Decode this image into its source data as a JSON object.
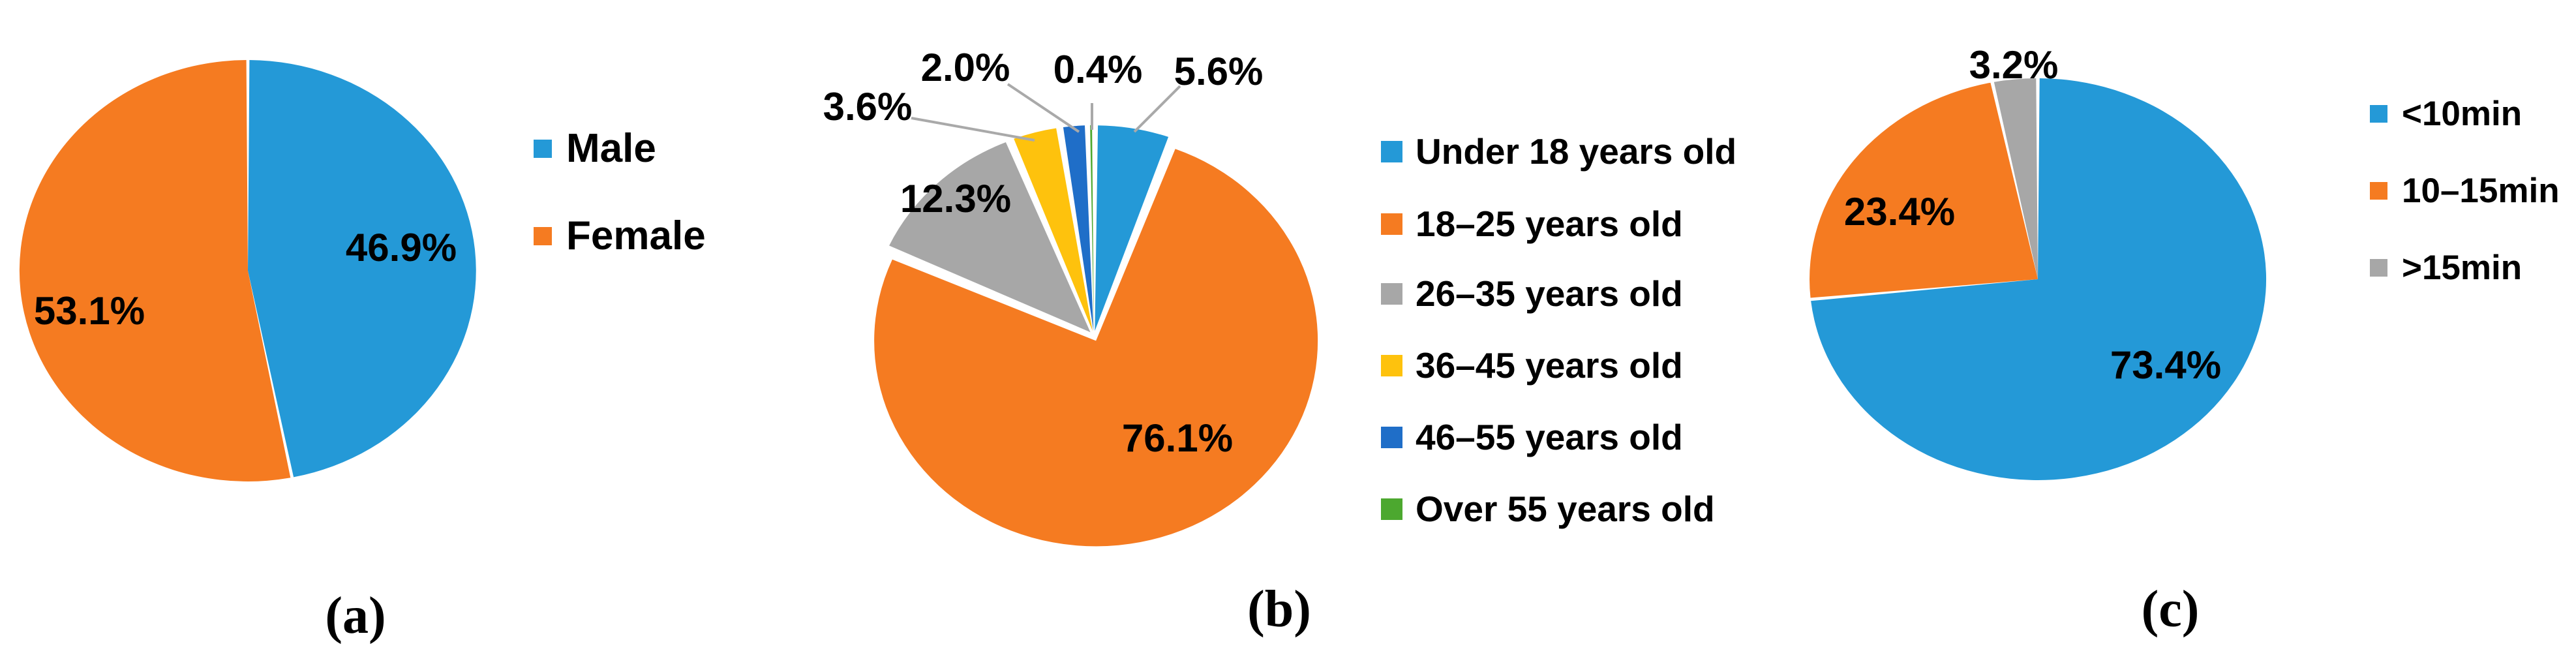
{
  "figure": {
    "background": "#ffffff",
    "leader_line_color": "#A9A9A9",
    "label_color": "#000000"
  },
  "chart_data": [
    {
      "type": "pie",
      "id": "a",
      "caption": "(a)",
      "legend_position": "right",
      "start_angle_deg": 0,
      "direction": "clockwise",
      "slices": [
        {
          "label": "Male",
          "value": 46.9,
          "display": "46.9%",
          "color": "#2499D7"
        },
        {
          "label": "Female",
          "value": 53.1,
          "display": "53.1%",
          "color": "#F57B21"
        }
      ]
    },
    {
      "type": "pie",
      "id": "b",
      "caption": "(b)",
      "legend_position": "right",
      "start_angle_deg": 0,
      "direction": "clockwise",
      "slices": [
        {
          "label": "Under 18 years old",
          "value": 5.6,
          "display": "5.6%",
          "color": "#2499D7"
        },
        {
          "label": "18–25 years old",
          "value": 76.1,
          "display": "76.1%",
          "color": "#F57B21"
        },
        {
          "label": "26–35 years old",
          "value": 12.3,
          "display": "12.3%",
          "color": "#A7A7A7"
        },
        {
          "label": "36–45 years old",
          "value": 3.6,
          "display": "3.6%",
          "color": "#FEC20D"
        },
        {
          "label": "46–55 years old",
          "value": 2.0,
          "display": "2.0%",
          "color": "#1F6EC8"
        },
        {
          "label": "Over 55 years old",
          "value": 0.4,
          "display": "0.4%",
          "color": "#4CA82F"
        }
      ]
    },
    {
      "type": "pie",
      "id": "c",
      "caption": "(c)",
      "legend_position": "right",
      "start_angle_deg": 0,
      "direction": "clockwise",
      "slices": [
        {
          "label": "<10min",
          "value": 73.4,
          "display": "73.4%",
          "color": "#2499D7"
        },
        {
          "label": "10–15min",
          "value": 23.4,
          "display": "23.4%",
          "color": "#F57B21"
        },
        {
          "label": ">15min",
          "value": 3.2,
          "display": "3.2%",
          "color": "#A7A7A7"
        }
      ]
    }
  ]
}
